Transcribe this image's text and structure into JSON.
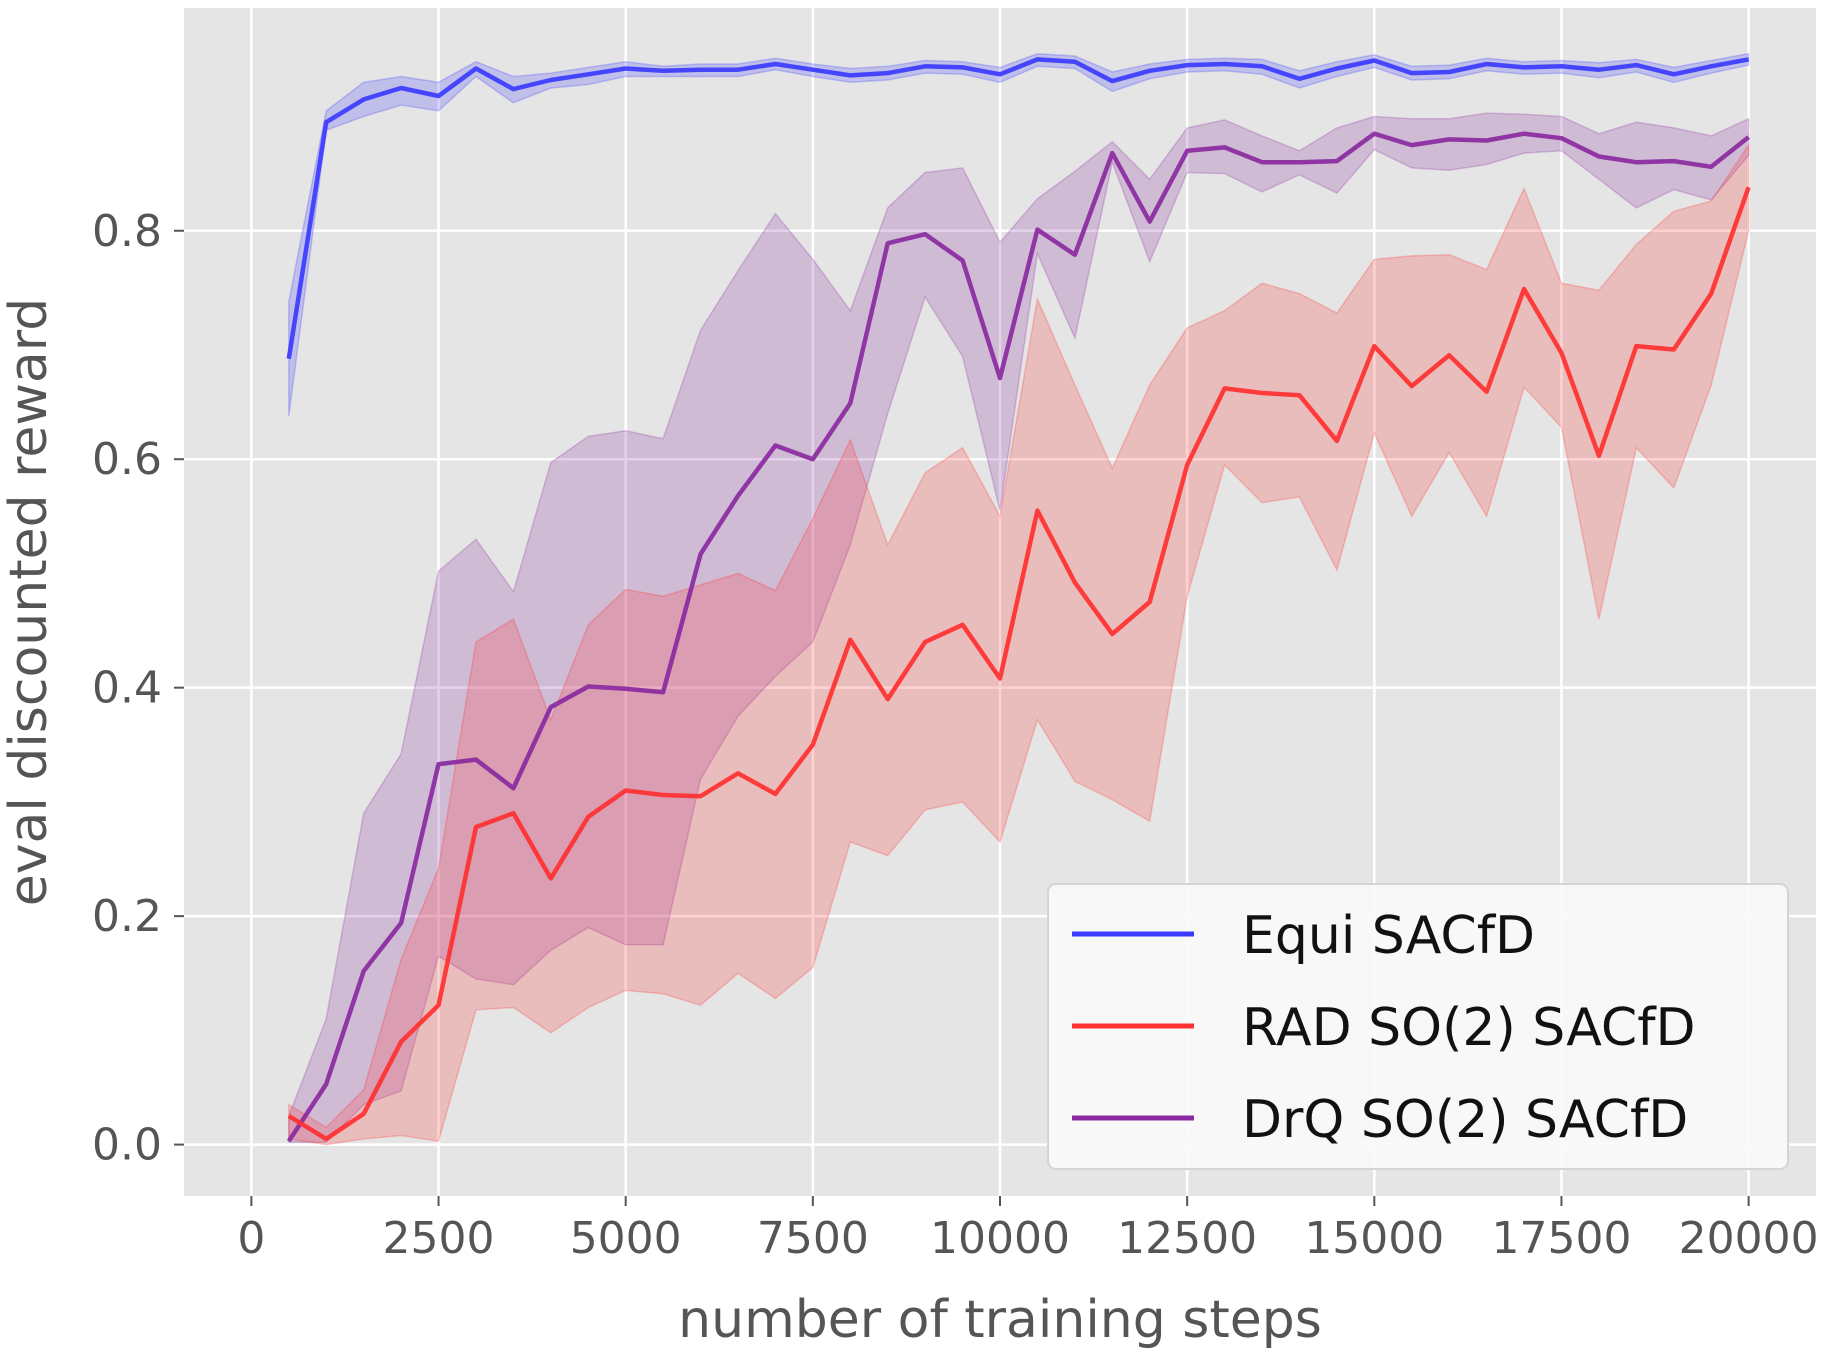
{
  "chart_data": {
    "type": "line",
    "title": "",
    "xlabel": "number of training steps",
    "ylabel": "eval discounted reward",
    "xlim": [
      -900,
      20900
    ],
    "ylim": [
      -0.045,
      0.995
    ],
    "xticks": [
      0,
      2500,
      5000,
      7500,
      10000,
      12500,
      15000,
      17500,
      20000
    ],
    "xtick_labels": [
      "0",
      "2500",
      "5000",
      "7500",
      "10000",
      "12500",
      "15000",
      "17500",
      "20000"
    ],
    "yticks": [
      0.0,
      0.2,
      0.4,
      0.6,
      0.8
    ],
    "ytick_labels": [
      "0.0",
      "0.2",
      "0.4",
      "0.6",
      "0.8"
    ],
    "grid": true,
    "legend_position": "lower-right",
    "x": [
      500,
      1000,
      1500,
      2000,
      2500,
      3000,
      3500,
      4000,
      4500,
      5000,
      5500,
      6000,
      6500,
      7000,
      7500,
      8000,
      8500,
      9000,
      9500,
      10000,
      10500,
      11000,
      11500,
      12000,
      12500,
      13000,
      13500,
      14000,
      14500,
      15000,
      15500,
      16000,
      16500,
      17000,
      17500,
      18000,
      18500,
      19000,
      19500,
      20000
    ],
    "series": [
      {
        "name": "Equi SACfD",
        "color": "#3b3bff",
        "values": [
          0.688,
          0.895,
          0.915,
          0.925,
          0.918,
          0.942,
          0.924,
          0.932,
          0.937,
          0.942,
          0.94,
          0.941,
          0.941,
          0.946,
          0.941,
          0.936,
          0.938,
          0.944,
          0.943,
          0.937,
          0.95,
          0.948,
          0.931,
          0.94,
          0.945,
          0.946,
          0.944,
          0.933,
          0.942,
          0.949,
          0.938,
          0.939,
          0.946,
          0.943,
          0.944,
          0.941,
          0.945,
          0.937,
          0.944,
          0.95
        ],
        "lower": [
          0.638,
          0.888,
          0.9,
          0.91,
          0.905,
          0.935,
          0.912,
          0.925,
          0.928,
          0.935,
          0.935,
          0.935,
          0.935,
          0.941,
          0.935,
          0.93,
          0.932,
          0.938,
          0.937,
          0.93,
          0.944,
          0.942,
          0.922,
          0.933,
          0.939,
          0.94,
          0.937,
          0.925,
          0.935,
          0.943,
          0.932,
          0.933,
          0.94,
          0.937,
          0.938,
          0.934,
          0.939,
          0.93,
          0.938,
          0.945
        ],
        "upper": [
          0.738,
          0.905,
          0.93,
          0.935,
          0.93,
          0.948,
          0.935,
          0.938,
          0.943,
          0.948,
          0.944,
          0.946,
          0.946,
          0.951,
          0.946,
          0.942,
          0.944,
          0.949,
          0.948,
          0.943,
          0.955,
          0.953,
          0.939,
          0.946,
          0.95,
          0.951,
          0.95,
          0.94,
          0.948,
          0.954,
          0.944,
          0.945,
          0.951,
          0.948,
          0.949,
          0.947,
          0.95,
          0.943,
          0.949,
          0.955
        ]
      },
      {
        "name": "RAD SO(2) SACfD",
        "color": "#ff3030",
        "values": [
          0.025,
          0.005,
          0.027,
          0.09,
          0.122,
          0.278,
          0.29,
          0.233,
          0.287,
          0.31,
          0.306,
          0.305,
          0.325,
          0.307,
          0.35,
          0.442,
          0.39,
          0.44,
          0.455,
          0.408,
          0.555,
          0.492,
          0.447,
          0.475,
          0.595,
          0.662,
          0.658,
          0.656,
          0.616,
          0.699,
          0.664,
          0.691,
          0.659,
          0.749,
          0.693,
          0.603,
          0.699,
          0.696,
          0.745,
          0.838
        ],
        "lower": [
          0.005,
          0.0,
          0.005,
          0.008,
          0.003,
          0.118,
          0.12,
          0.098,
          0.12,
          0.135,
          0.132,
          0.122,
          0.15,
          0.128,
          0.155,
          0.265,
          0.253,
          0.293,
          0.3,
          0.265,
          0.372,
          0.318,
          0.302,
          0.283,
          0.48,
          0.595,
          0.562,
          0.567,
          0.503,
          0.623,
          0.55,
          0.606,
          0.55,
          0.663,
          0.628,
          0.46,
          0.61,
          0.575,
          0.665,
          0.8
        ],
        "upper": [
          0.035,
          0.015,
          0.048,
          0.162,
          0.242,
          0.44,
          0.46,
          0.372,
          0.455,
          0.486,
          0.48,
          0.49,
          0.5,
          0.485,
          0.548,
          0.617,
          0.525,
          0.588,
          0.61,
          0.55,
          0.74,
          0.665,
          0.592,
          0.665,
          0.715,
          0.73,
          0.754,
          0.745,
          0.728,
          0.775,
          0.778,
          0.779,
          0.766,
          0.837,
          0.754,
          0.748,
          0.788,
          0.817,
          0.826,
          0.875
        ]
      },
      {
        "name": "DrQ SO(2) SACfD",
        "color": "#8a2aa0",
        "values": [
          0.003,
          0.053,
          0.152,
          0.194,
          0.333,
          0.337,
          0.312,
          0.383,
          0.401,
          0.399,
          0.396,
          0.517,
          0.568,
          0.612,
          0.6,
          0.649,
          0.789,
          0.797,
          0.774,
          0.671,
          0.801,
          0.779,
          0.868,
          0.808,
          0.87,
          0.873,
          0.86,
          0.86,
          0.861,
          0.885,
          0.875,
          0.88,
          0.879,
          0.885,
          0.881,
          0.865,
          0.86,
          0.861,
          0.856,
          0.882
        ],
        "lower": [
          0.002,
          0.002,
          0.035,
          0.047,
          0.165,
          0.145,
          0.14,
          0.17,
          0.19,
          0.175,
          0.175,
          0.32,
          0.375,
          0.41,
          0.44,
          0.525,
          0.64,
          0.742,
          0.69,
          0.555,
          0.78,
          0.706,
          0.86,
          0.773,
          0.851,
          0.85,
          0.834,
          0.849,
          0.833,
          0.871,
          0.855,
          0.853,
          0.858,
          0.868,
          0.87,
          0.845,
          0.82,
          0.836,
          0.827,
          0.866
        ],
        "upper": [
          0.025,
          0.11,
          0.29,
          0.342,
          0.502,
          0.53,
          0.484,
          0.597,
          0.62,
          0.625,
          0.618,
          0.713,
          0.765,
          0.815,
          0.775,
          0.73,
          0.82,
          0.851,
          0.855,
          0.79,
          0.828,
          0.852,
          0.878,
          0.845,
          0.89,
          0.897,
          0.883,
          0.87,
          0.89,
          0.9,
          0.898,
          0.898,
          0.903,
          0.902,
          0.9,
          0.885,
          0.895,
          0.89,
          0.883,
          0.898
        ]
      }
    ]
  }
}
